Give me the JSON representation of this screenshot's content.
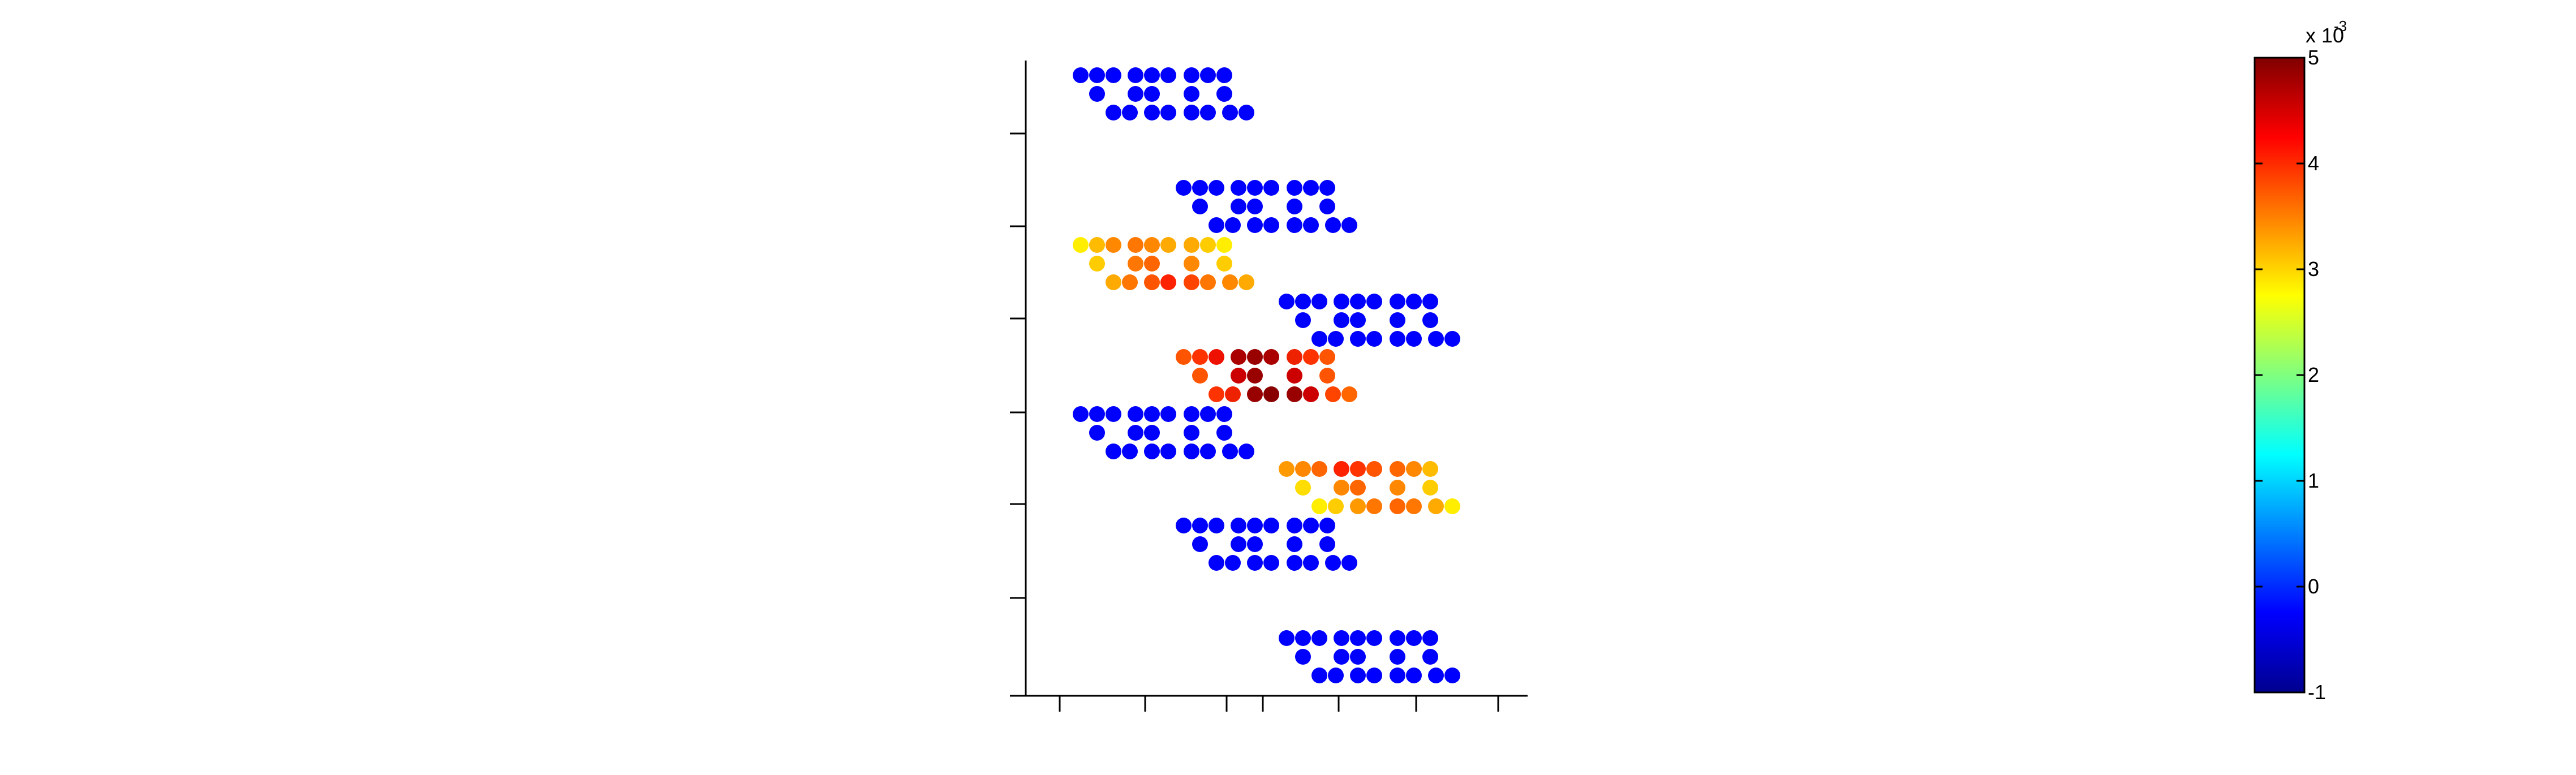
{
  "chart_data": {
    "type": "scatter",
    "description_of_axes": "",
    "xlabel": "",
    "ylabel": "",
    "xticks_labeled": false,
    "yticks_labeled": false,
    "groups": [
      {
        "id": "g1",
        "color_value": -0.0002,
        "color": "#0000ff"
      },
      {
        "id": "g2",
        "color_value": -0.0002,
        "color": "#0000ff"
      },
      {
        "id": "g3",
        "color_value": 0.0036,
        "color": "#ff8c00"
      },
      {
        "id": "g4",
        "color_value": -0.0002,
        "color": "#0000ff"
      },
      {
        "id": "g5",
        "color_value": 0.0047,
        "color": "#b00000"
      },
      {
        "id": "g6",
        "color_value": -0.0002,
        "color": "#0000ff"
      },
      {
        "id": "g7",
        "color_value": 0.0035,
        "color": "#ff9900"
      },
      {
        "id": "g8",
        "color_value": -0.0002,
        "color": "#0000ff"
      },
      {
        "id": "g9",
        "color_value": -0.0002,
        "color": "#0000ff"
      }
    ],
    "colorbar": {
      "colormap": "jet",
      "min": -1,
      "max": 5,
      "scale_exponent_base": "x 10",
      "scale_exponent_power": "-3",
      "tick_labels": [
        "-1",
        "0",
        "1",
        "2",
        "3",
        "4",
        "5"
      ]
    }
  }
}
